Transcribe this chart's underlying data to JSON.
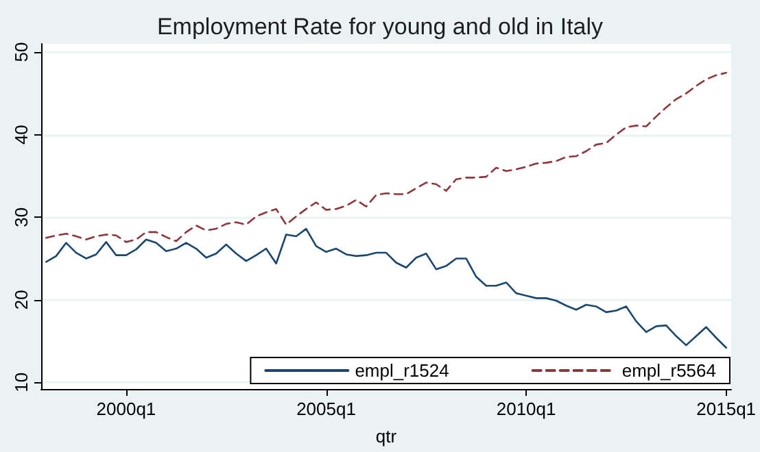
{
  "chart_data": {
    "type": "line",
    "title": "Employment Rate for young and old in Italy",
    "xlabel": "qtr",
    "categories": [
      null,
      null,
      null,
      null,
      null,
      null,
      null,
      null,
      "2000q1",
      null,
      null,
      null,
      null,
      null,
      null,
      null,
      null,
      null,
      null,
      null,
      null,
      null,
      null,
      null,
      null,
      null,
      null,
      null,
      "2005q1",
      null,
      null,
      null,
      null,
      null,
      null,
      null,
      null,
      null,
      null,
      null,
      null,
      null,
      null,
      null,
      null,
      null,
      null,
      null,
      "2010q1",
      null,
      null,
      null,
      null,
      null,
      null,
      null,
      null,
      null,
      null,
      null,
      null,
      null,
      null,
      null,
      null,
      null,
      null,
      null,
      "2015q1"
    ],
    "series": [
      {
        "name": "empl_r1524",
        "color": "#1a476f",
        "line_style": "solid",
        "values": [
          24.6,
          25.3,
          26.9,
          25.7,
          25.0,
          25.5,
          27.0,
          25.4,
          25.4,
          26.1,
          27.3,
          26.9,
          25.9,
          26.2,
          26.9,
          26.2,
          25.1,
          25.6,
          26.7,
          25.6,
          24.7,
          25.4,
          26.2,
          24.4,
          27.9,
          27.7,
          28.6,
          26.5,
          25.8,
          26.2,
          25.5,
          25.3,
          25.4,
          25.7,
          25.7,
          24.5,
          23.9,
          25.1,
          25.6,
          23.7,
          24.1,
          25.0,
          25.0,
          22.8,
          21.7,
          21.7,
          22.1,
          20.8,
          20.5,
          20.2,
          20.2,
          19.9,
          19.3,
          18.8,
          19.4,
          19.2,
          18.5,
          18.7,
          19.2,
          17.4,
          16.1,
          16.8,
          16.9,
          15.6,
          14.5,
          15.6,
          16.7,
          15.4,
          14.2
        ]
      },
      {
        "name": "empl_r5564",
        "color": "#90353b",
        "line_style": "dashed",
        "values": [
          27.5,
          27.8,
          28.0,
          27.7,
          27.3,
          27.7,
          27.9,
          27.8,
          27.0,
          27.3,
          28.2,
          28.2,
          27.6,
          27.1,
          28.2,
          29.0,
          28.4,
          28.6,
          29.2,
          29.4,
          29.1,
          30.1,
          30.6,
          31.0,
          29.1,
          30.1,
          31.0,
          31.8,
          30.9,
          31.0,
          31.4,
          32.1,
          31.3,
          32.7,
          32.9,
          32.8,
          32.8,
          33.5,
          34.2,
          34.0,
          33.2,
          34.6,
          34.8,
          34.8,
          34.9,
          36.0,
          35.6,
          35.8,
          36.1,
          36.5,
          36.6,
          36.8,
          37.3,
          37.4,
          38.0,
          38.8,
          39.0,
          40.0,
          40.9,
          41.1,
          41.0,
          42.2,
          43.3,
          44.3,
          45.0,
          45.9,
          46.7,
          47.2,
          47.5
        ]
      }
    ],
    "ylim": [
      9.2,
      51
    ],
    "yticks": [
      10,
      20,
      30,
      40,
      50
    ],
    "grid": "y",
    "legend": "bottom right",
    "marker": "none"
  }
}
